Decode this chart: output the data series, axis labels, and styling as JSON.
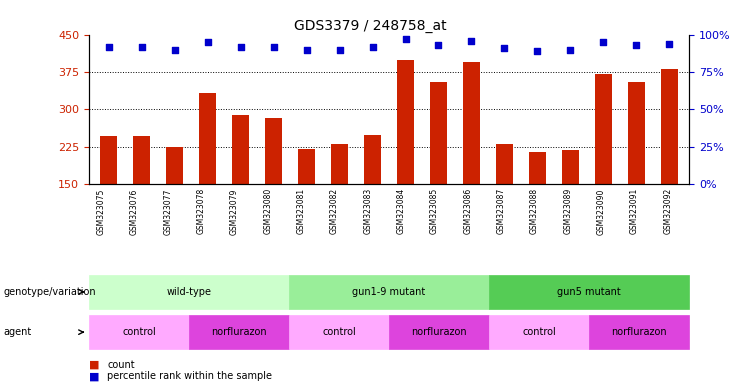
{
  "title": "GDS3379 / 248758_at",
  "samples": [
    "GSM323075",
    "GSM323076",
    "GSM323077",
    "GSM323078",
    "GSM323079",
    "GSM323080",
    "GSM323081",
    "GSM323082",
    "GSM323083",
    "GSM323084",
    "GSM323085",
    "GSM323086",
    "GSM323087",
    "GSM323088",
    "GSM323089",
    "GSM323090",
    "GSM323091",
    "GSM323092"
  ],
  "counts": [
    247,
    247,
    225,
    332,
    288,
    283,
    220,
    230,
    248,
    400,
    355,
    395,
    230,
    215,
    218,
    370,
    355,
    382
  ],
  "percentile_ranks": [
    92,
    92,
    90,
    95,
    92,
    92,
    90,
    90,
    92,
    97,
    93,
    96,
    91,
    89,
    90,
    95,
    93,
    94
  ],
  "bar_color": "#cc2200",
  "dot_color": "#0000cc",
  "ylim_left": [
    150,
    450
  ],
  "ylim_right": [
    0,
    100
  ],
  "yticks_left": [
    150,
    225,
    300,
    375,
    450
  ],
  "yticks_right": [
    0,
    25,
    50,
    75,
    100
  ],
  "grid_values": [
    225,
    300,
    375
  ],
  "genotype_groups": [
    {
      "label": "wild-type",
      "start": 0,
      "end": 6,
      "color": "#ccffcc"
    },
    {
      "label": "gun1-9 mutant",
      "start": 6,
      "end": 12,
      "color": "#99ee99"
    },
    {
      "label": "gun5 mutant",
      "start": 12,
      "end": 18,
      "color": "#55cc55"
    }
  ],
  "agent_groups": [
    {
      "label": "control",
      "start": 0,
      "end": 3,
      "color": "#ffaaff"
    },
    {
      "label": "norflurazon",
      "start": 3,
      "end": 6,
      "color": "#dd44dd"
    },
    {
      "label": "control",
      "start": 6,
      "end": 9,
      "color": "#ffaaff"
    },
    {
      "label": "norflurazon",
      "start": 9,
      "end": 12,
      "color": "#dd44dd"
    },
    {
      "label": "control",
      "start": 12,
      "end": 15,
      "color": "#ffaaff"
    },
    {
      "label": "norflurazon",
      "start": 15,
      "end": 18,
      "color": "#dd44dd"
    }
  ],
  "legend_count_color": "#cc2200",
  "legend_dot_color": "#0000cc",
  "background_color": "#ffffff",
  "tick_label_color_left": "#cc2200",
  "tick_label_color_right": "#0000cc",
  "geno_label": "genotype/variation",
  "agent_label": "agent"
}
